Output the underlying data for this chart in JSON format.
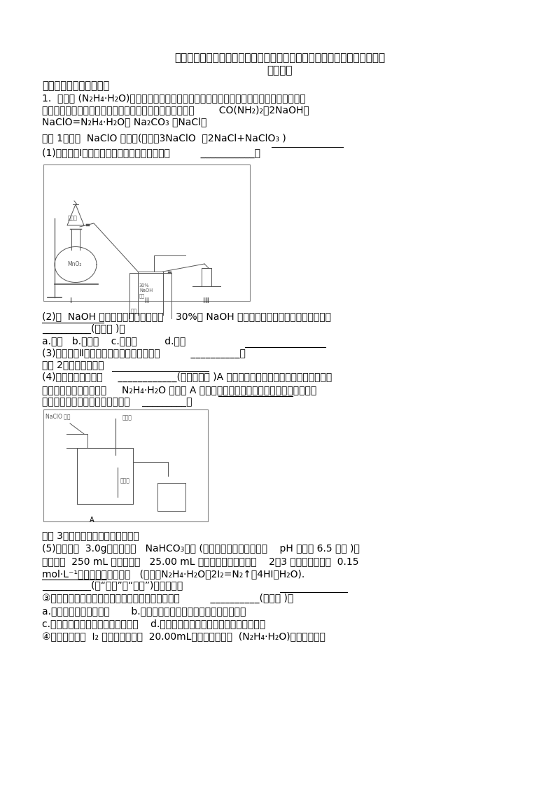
{
  "bg_color": "#ffffff",
  "title_line1": "全国备战高考化学化水溶液中的离子平衡的综合备战高考模拟和真题分类汇",
  "title_line2": "总及答案",
  "section1": "一、水溶液中的离子平衡",
  "q1_text1": "1.  水合肼 (N₂H₄·H₂O)又名水合联氨，无色透明，是具有腐蚀性和强还原性的碱性液体，它",
  "q1_text2": "是一种重要的化工试剂。利用尿素法生产水合肼的原理为：        CO(NH₂)₂＋2NaOH＋",
  "q1_text3": "NaClO=N₂H₄·H₂O＋ Na₂CO₃ ＋NaCl。",
  "exp1_title": "实验 1：制备  NaClO 溶液。(已知：3NaClO  ＝2NaCl+NaClO₃ )",
  "q1_sub": "(1)如图装置Ⅰ中烧瓶内发生反应的化学方程式为          ___________。",
  "q2_text": "(2)用  NaOH 固体配制溶质质量分数为    30%的 NaOH 溶液时，所需玻璃仪器除量筒外还有",
  "q2_blank": "__________(填字母 )。",
  "q2_options": "a.烧杯   b.容量瓶    c.玻璃棒         d.烧瓶",
  "q3_text": "(3)图中装置Ⅱ中用冰水浴控制温度的目的是          __________。",
  "exp2_title": "实验 2：制取水合肼。",
  "q4_text1": "(4)图中充分反应后，     ____________(填操作名称 )A 中溶液即可得到水合肼的粗产品。若分液",
  "q4_text2": "漏斗滴液速度过快，部分     N₂H₄·H₂O 会参与 A 中反应并产生大量氮气，降低产品产率。写出",
  "q4_text3": "该过程反应生成氮气的化学方程式    _________。",
  "exp3_title": "实验 3：测定馏分中水合肼的含量。",
  "q5_text1": "(5)称取馏分  3.0g，加入适量   NaHCO₃固体 (滴定过程中，调节溶液的    pH 保持在 6.5 左右 )，",
  "q5_text2": "加水配成  250 mL 溶液，移出   25.00 mL 置于锥形瓶中，并滴加    2～3 滴淀粉溶液，用  0.15",
  "q5_text3": "mol·L⁻¹的碘的标准溶液滴定   (已知：N₂H₄·H₂O＋2I₂=N₂↑＋4HI＋H₂O).",
  "q5_blank": "__________(填“酸式”或“碱式”)滴定管中。",
  "q5b_text": "③下列能导致馏分中水合肼的含量测定结果偏高的是          __________(填字母 )。",
  "q5b_options_a": "a.准形瓶洗干净后未干燥       b.滴定前，滴定管内无气泡，滴定后有气泡",
  "q5b_options_b": "c.读数时，滴定前平视，滴定后俯视    d.盛标准液的滴定管水洗后，直接装标准液",
  "q5c_text": "④实验测得消耗  I₂ 溶液的平均值为  20.00mL，馏分中水合肼  (N₂H₄·H₂O)的质量分数为"
}
